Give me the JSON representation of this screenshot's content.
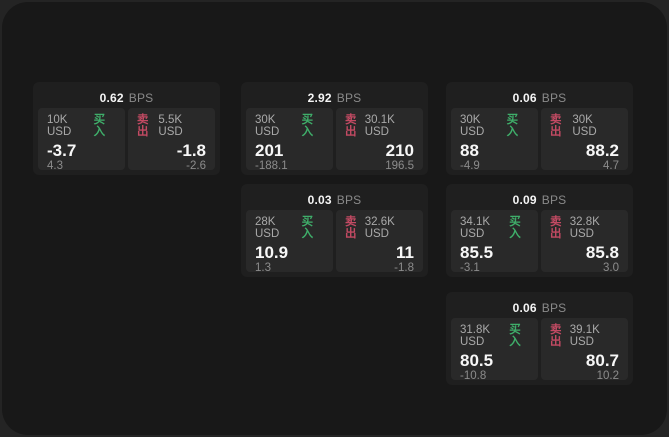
{
  "labels": {
    "buy": "买入",
    "sell": "卖出",
    "bps": "BPS"
  },
  "colors": {
    "buy_green": "#3fae6a",
    "sell_red": "#c24a63"
  },
  "cards": [
    {
      "bps": "0.62",
      "buy": {
        "amount": "10K USD",
        "value": "-3.7",
        "sub": "4.3"
      },
      "sell": {
        "amount": "5.5K USD",
        "value": "-1.8",
        "sub": "-2.6"
      }
    },
    {
      "bps": "2.92",
      "buy": {
        "amount": "30K USD",
        "value": "201",
        "sub": "-188.1"
      },
      "sell": {
        "amount": "30.1K USD",
        "value": "210",
        "sub": "196.5"
      }
    },
    {
      "bps": "0.06",
      "buy": {
        "amount": "30K USD",
        "value": "88",
        "sub": "-4.9"
      },
      "sell": {
        "amount": "30K USD",
        "value": "88.2",
        "sub": "4.7"
      }
    },
    {
      "bps": "0.03",
      "buy": {
        "amount": "28K USD",
        "value": "10.9",
        "sub": "1.3"
      },
      "sell": {
        "amount": "32.6K USD",
        "value": "11",
        "sub": "-1.8"
      }
    },
    {
      "bps": "0.09",
      "buy": {
        "amount": "34.1K USD",
        "value": "85.5",
        "sub": "-3.1"
      },
      "sell": {
        "amount": "32.8K USD",
        "value": "85.8",
        "sub": "3.0"
      }
    },
    {
      "bps": "0.06",
      "buy": {
        "amount": "31.8K USD",
        "value": "80.5",
        "sub": "-10.8"
      },
      "sell": {
        "amount": "39.1K USD",
        "value": "80.7",
        "sub": "10.2"
      }
    }
  ]
}
